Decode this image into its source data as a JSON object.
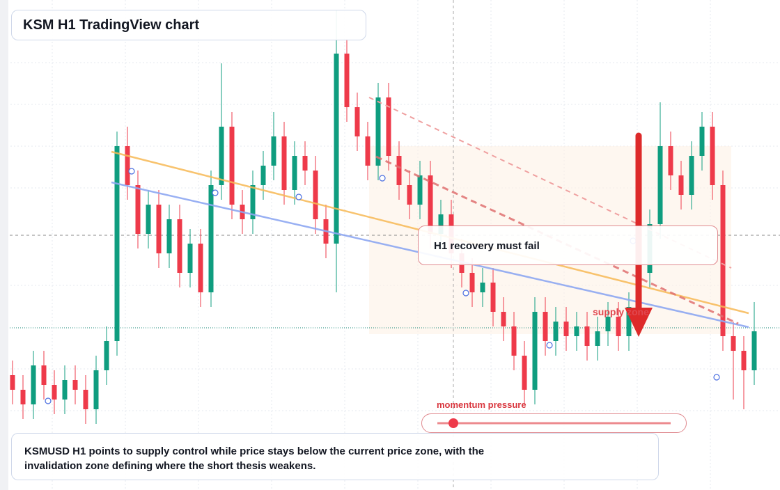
{
  "chart_data": {
    "type": "candlestick",
    "title": "KSM H1 TradingView chart",
    "annotation": "H1 recovery must fail",
    "zone_label": "supply zone",
    "indicator_label": "momentum pressure",
    "caption": "KSMUSD H1 points to supply control while price stays below the current price zone, with the invalidation zone defining where the short thesis weakens.",
    "up_color": "#0f9d7f",
    "down_color": "#ee3a4a",
    "ylim": [
      0,
      100
    ],
    "open": [
      23,
      20,
      17,
      25,
      21,
      18,
      22,
      20,
      16,
      24,
      30,
      70,
      62,
      52,
      58,
      48,
      55,
      44,
      50,
      40,
      62,
      74,
      58,
      55,
      62,
      66,
      72,
      61,
      68,
      65,
      55,
      50,
      89,
      78,
      72,
      66,
      80,
      68,
      62,
      58,
      64,
      52,
      56,
      48,
      44,
      40,
      42,
      36,
      33,
      27,
      20,
      36,
      30,
      34,
      31,
      33,
      29,
      32,
      35,
      31,
      37,
      44,
      54,
      70,
      64,
      60,
      68,
      74,
      62,
      31,
      28,
      24
    ],
    "high": [
      26,
      23,
      28,
      28,
      24,
      25,
      25,
      23,
      27,
      33,
      73,
      74,
      65,
      61,
      61,
      58,
      58,
      53,
      53,
      65,
      87,
      77,
      61,
      65,
      69,
      77,
      75,
      71,
      71,
      68,
      58,
      98,
      92,
      81,
      75,
      83,
      83,
      71,
      65,
      67,
      67,
      59,
      59,
      51,
      47,
      45,
      45,
      39,
      36,
      30,
      39,
      39,
      37,
      37,
      36,
      36,
      35,
      38,
      38,
      40,
      47,
      57,
      79,
      73,
      67,
      71,
      77,
      77,
      65,
      34,
      31,
      38
    ],
    "low": [
      17,
      14,
      14,
      18,
      15,
      15,
      17,
      13,
      13,
      21,
      27,
      59,
      49,
      49,
      45,
      45,
      41,
      41,
      37,
      37,
      59,
      55,
      52,
      52,
      59,
      63,
      58,
      58,
      62,
      52,
      47,
      40,
      75,
      69,
      63,
      63,
      65,
      59,
      55,
      55,
      49,
      49,
      45,
      41,
      37,
      37,
      33,
      30,
      24,
      17,
      17,
      27,
      27,
      28,
      28,
      26,
      26,
      29,
      28,
      28,
      34,
      41,
      51,
      61,
      57,
      57,
      65,
      59,
      28,
      18,
      16,
      21
    ],
    "close": [
      20,
      17,
      25,
      21,
      18,
      22,
      20,
      16,
      24,
      30,
      70,
      62,
      52,
      58,
      48,
      55,
      44,
      50,
      40,
      62,
      74,
      58,
      55,
      62,
      66,
      72,
      61,
      68,
      65,
      55,
      50,
      89,
      78,
      72,
      66,
      80,
      68,
      62,
      58,
      64,
      52,
      56,
      48,
      44,
      40,
      42,
      36,
      33,
      27,
      20,
      36,
      30,
      34,
      31,
      33,
      29,
      32,
      35,
      31,
      37,
      44,
      54,
      70,
      64,
      60,
      68,
      74,
      62,
      31,
      28,
      24,
      32
    ]
  }
}
